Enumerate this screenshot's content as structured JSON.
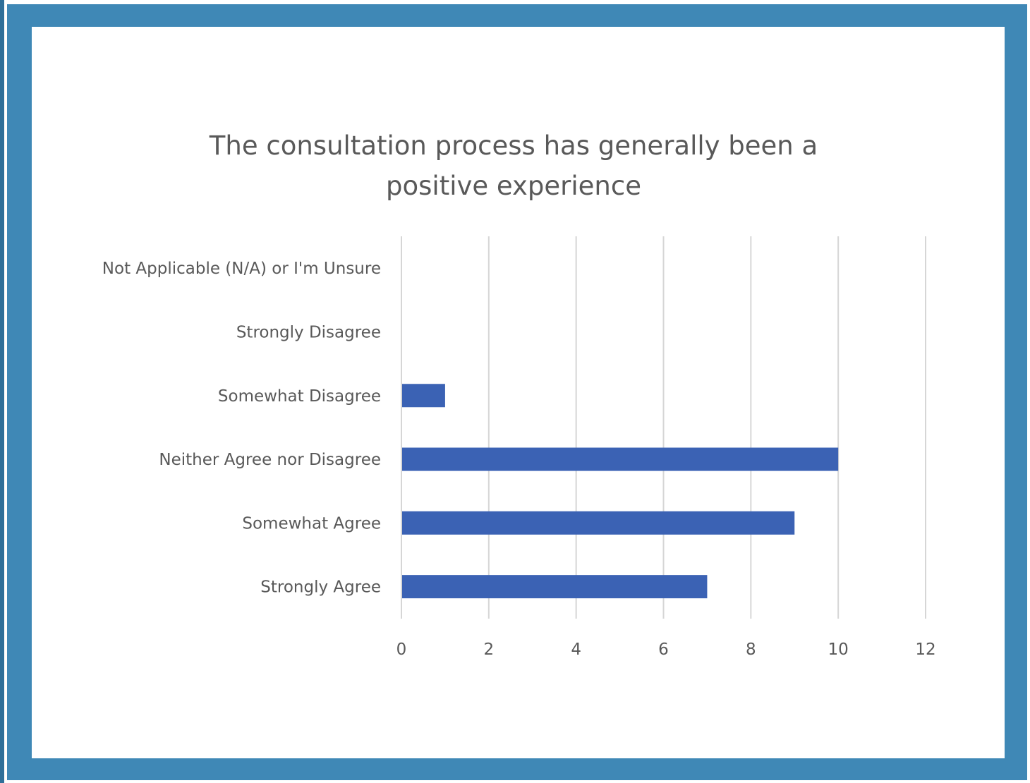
{
  "chart_data": {
    "type": "bar",
    "orientation": "horizontal",
    "title": "The consultation process has generally been a positive experience",
    "title_lines": [
      "The consultation process has generally been a",
      "positive experience"
    ],
    "categories": [
      "Not Applicable (N/A) or I'm Unsure",
      "Strongly Disagree",
      "Somewhat Disagree",
      "Neither Agree nor Disagree",
      "Somewhat Agree",
      "Strongly Agree"
    ],
    "values": [
      0,
      0,
      1,
      10,
      9,
      7
    ],
    "xlim": [
      0,
      12
    ],
    "xticks": [
      "0",
      "2",
      "4",
      "6",
      "8",
      "10",
      "12"
    ],
    "grid": true,
    "legend": "none",
    "bar_color": "#3b62b4",
    "frame_color": "#3f88b6"
  }
}
